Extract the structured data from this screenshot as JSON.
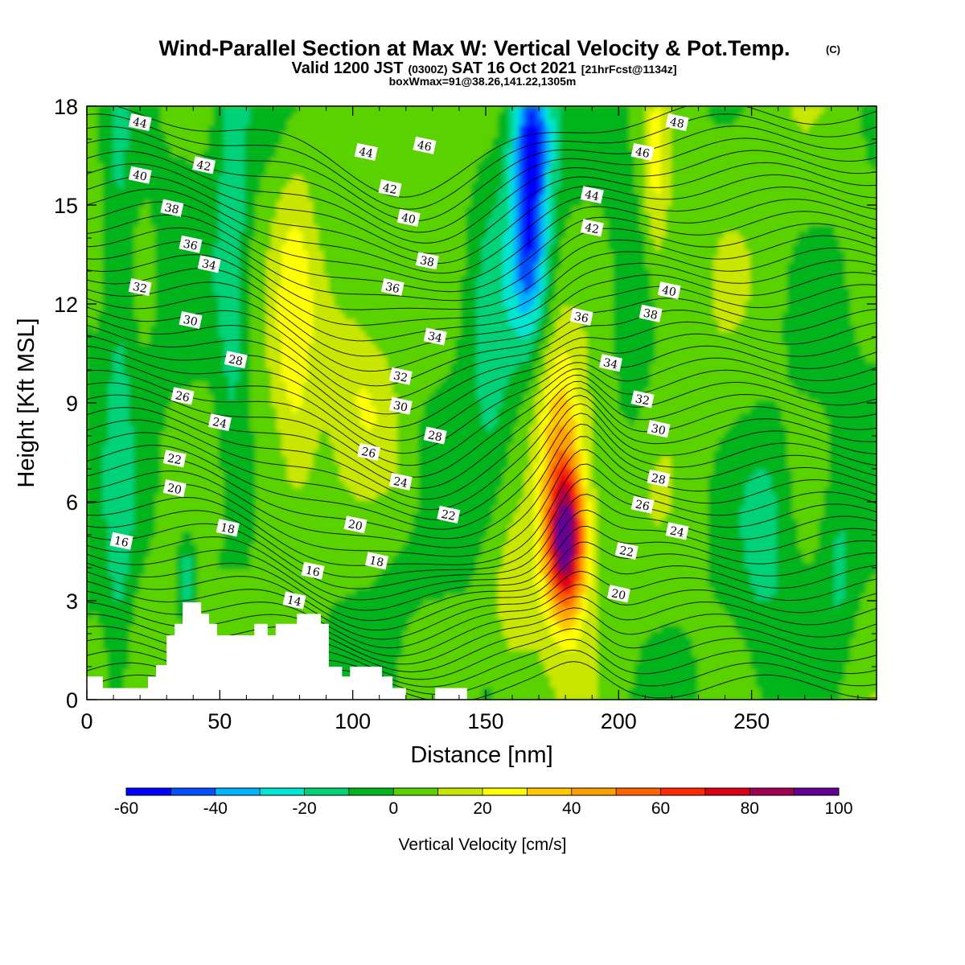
{
  "figure": {
    "title": "Wind-Parallel Section at Max W: Vertical Velocity & Pot.Temp.",
    "title_mark": "(C)",
    "subtitle_valid": "Valid 1200 JST",
    "subtitle_z": "(0300Z)",
    "subtitle_date": "SAT 16 Oct 2021",
    "subtitle_fcst": "[21hrFcst@1134z]",
    "subtitle_box": "boxWmax=91@38.26,141.22,1305m"
  },
  "chart_data": {
    "type": "heatmap",
    "xlabel": "Distance [nm]",
    "ylabel": "Height [Kft MSL]",
    "xlim": [
      0,
      297
    ],
    "ylim": [
      0,
      18
    ],
    "x_ticks": [
      "0",
      "50",
      "100",
      "150",
      "200",
      "250"
    ],
    "x_tick_values": [
      0,
      50,
      100,
      150,
      200,
      250
    ],
    "y_ticks": [
      "0",
      "3",
      "6",
      "9",
      "12",
      "15",
      "18"
    ],
    "y_tick_values": [
      0,
      3,
      6,
      9,
      12,
      15,
      18
    ],
    "colorbar": {
      "label": "Vertical Velocity [cm/s]",
      "tick_labels": [
        "-60",
        "-40",
        "-20",
        "0",
        "20",
        "40",
        "60",
        "80",
        "100"
      ],
      "levels": [
        -60,
        -50,
        -40,
        -30,
        -20,
        -10,
        0,
        10,
        20,
        30,
        40,
        50,
        60,
        70,
        80,
        90,
        100
      ],
      "colors": [
        "#0000ff",
        "#0050ff",
        "#00b4ff",
        "#00e6d2",
        "#00d278",
        "#00b41e",
        "#5ad200",
        "#c8e600",
        "#ffff00",
        "#ffc800",
        "#ffa000",
        "#ff6400",
        "#ff2800",
        "#dc0014",
        "#a00050",
        "#640096"
      ]
    },
    "updraft_max": {
      "value_cm_s": 91,
      "x_nm": 181,
      "z_kft": 5
    },
    "theta_contours": [
      {
        "label": "14",
        "x": 78,
        "z": 3.0
      },
      {
        "label": "16",
        "x": 13,
        "z": 4.8
      },
      {
        "label": "16",
        "x": 85,
        "z": 3.9
      },
      {
        "label": "18",
        "x": 53,
        "z": 5.2
      },
      {
        "label": "18",
        "x": 109,
        "z": 4.2
      },
      {
        "label": "20",
        "x": 33,
        "z": 6.4
      },
      {
        "label": "20",
        "x": 101,
        "z": 5.3
      },
      {
        "label": "20",
        "x": 200,
        "z": 3.2
      },
      {
        "label": "22",
        "x": 33,
        "z": 7.3
      },
      {
        "label": "22",
        "x": 136,
        "z": 5.6
      },
      {
        "label": "22",
        "x": 203,
        "z": 4.5
      },
      {
        "label": "24",
        "x": 50,
        "z": 8.4
      },
      {
        "label": "24",
        "x": 118,
        "z": 6.6
      },
      {
        "label": "24",
        "x": 222,
        "z": 5.1
      },
      {
        "label": "26",
        "x": 36,
        "z": 9.2
      },
      {
        "label": "26",
        "x": 106,
        "z": 7.5
      },
      {
        "label": "26",
        "x": 209,
        "z": 5.9
      },
      {
        "label": "28",
        "x": 56,
        "z": 10.3
      },
      {
        "label": "28",
        "x": 131,
        "z": 8.0
      },
      {
        "label": "28",
        "x": 215,
        "z": 6.7
      },
      {
        "label": "30",
        "x": 39,
        "z": 11.5
      },
      {
        "label": "30",
        "x": 118,
        "z": 8.9
      },
      {
        "label": "30",
        "x": 215,
        "z": 8.2
      },
      {
        "label": "32",
        "x": 20,
        "z": 12.5
      },
      {
        "label": "32",
        "x": 118,
        "z": 9.8
      },
      {
        "label": "32",
        "x": 209,
        "z": 9.1
      },
      {
        "label": "34",
        "x": 46,
        "z": 13.2
      },
      {
        "label": "34",
        "x": 131,
        "z": 11.0
      },
      {
        "label": "34",
        "x": 197,
        "z": 10.2
      },
      {
        "label": "36",
        "x": 39,
        "z": 13.8
      },
      {
        "label": "36",
        "x": 115,
        "z": 12.5
      },
      {
        "label": "36",
        "x": 186,
        "z": 11.6
      },
      {
        "label": "38",
        "x": 32,
        "z": 14.9
      },
      {
        "label": "38",
        "x": 128,
        "z": 13.3
      },
      {
        "label": "38",
        "x": 212,
        "z": 11.7
      },
      {
        "label": "40",
        "x": 20,
        "z": 15.9
      },
      {
        "label": "40",
        "x": 121,
        "z": 14.6
      },
      {
        "label": "40",
        "x": 219,
        "z": 12.4
      },
      {
        "label": "42",
        "x": 44,
        "z": 16.2
      },
      {
        "label": "42",
        "x": 114,
        "z": 15.5
      },
      {
        "label": "42",
        "x": 190,
        "z": 14.3
      },
      {
        "label": "44",
        "x": 20,
        "z": 17.5
      },
      {
        "label": "44",
        "x": 105,
        "z": 16.6
      },
      {
        "label": "44",
        "x": 190,
        "z": 15.3
      },
      {
        "label": "46",
        "x": 127,
        "z": 16.8
      },
      {
        "label": "46",
        "x": 209,
        "z": 16.6
      },
      {
        "label": "48",
        "x": 222,
        "z": 17.5
      }
    ],
    "terrain_profile_kft": [
      [
        0,
        0.7
      ],
      [
        6,
        0.7
      ],
      [
        6,
        0.35
      ],
      [
        23,
        0.35
      ],
      [
        23,
        0.7
      ],
      [
        26,
        0.7
      ],
      [
        26,
        1.05
      ],
      [
        30,
        1.05
      ],
      [
        30,
        1.95
      ],
      [
        33,
        1.95
      ],
      [
        33,
        2.3
      ],
      [
        36,
        2.3
      ],
      [
        36,
        2.95
      ],
      [
        43,
        2.95
      ],
      [
        43,
        2.6
      ],
      [
        46,
        2.6
      ],
      [
        46,
        2.3
      ],
      [
        49,
        2.3
      ],
      [
        49,
        1.95
      ],
      [
        63,
        1.95
      ],
      [
        63,
        2.3
      ],
      [
        68,
        2.3
      ],
      [
        68,
        1.95
      ],
      [
        71,
        1.95
      ],
      [
        71,
        2.3
      ],
      [
        79,
        2.3
      ],
      [
        79,
        2.6
      ],
      [
        88,
        2.6
      ],
      [
        88,
        2.3
      ],
      [
        91,
        2.3
      ],
      [
        91,
        1.0
      ],
      [
        96,
        1.0
      ],
      [
        96,
        0.7
      ],
      [
        99,
        0.7
      ],
      [
        99,
        1.0
      ],
      [
        111,
        1.0
      ],
      [
        111,
        0.7
      ],
      [
        115,
        0.7
      ],
      [
        115,
        0.35
      ],
      [
        120,
        0.35
      ],
      [
        120,
        0.0
      ],
      [
        131,
        0.0
      ],
      [
        131,
        0.35
      ],
      [
        143,
        0.35
      ],
      [
        143,
        0.0
      ],
      [
        297,
        0.0
      ]
    ]
  }
}
